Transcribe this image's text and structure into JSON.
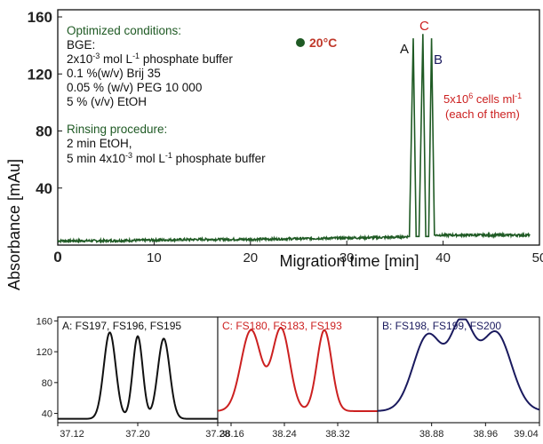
{
  "main_chart": {
    "type": "line",
    "xlabel": "Migration time  [min]",
    "ylabel": "Absorbance  [mAu]",
    "xlim": [
      0,
      50
    ],
    "ylim": [
      0,
      165
    ],
    "xticks": [
      "0",
      "10",
      "20",
      "30",
      "40",
      "50"
    ],
    "yticks": [
      "40",
      "80",
      "120",
      "160"
    ],
    "conditions": {
      "heading": "Optimized conditions:",
      "lines": [
        "BGE:",
        "2x10",
        "0.1 %(w/v) Brij 35",
        "0.05 % (w/v) PEG 10 000",
        "5 % (v/v) EtOH"
      ],
      "bge_line_mid": " mol L",
      "bge_line_end": " phosphate buffer",
      "exp1": "-3",
      "exp2": "-1"
    },
    "rinsing": {
      "heading": "Rinsing procedure:",
      "line1": "2 min EtOH,",
      "line2_a": "5 min 4x10",
      "line2_b": " mol L",
      "line2_c": " phosphate buffer",
      "exp1": "-3",
      "exp2": "-1"
    },
    "temperature": "20°C",
    "peak_labels": [
      "A",
      "C",
      "B"
    ],
    "cells_note_a": "5x10",
    "cells_note_exp": "6",
    "cells_note_b": " cells ml",
    "cells_note_exp2": "-1",
    "cells_note_2": "(each of them)"
  },
  "chart_data": [
    {
      "type": "line",
      "title": "",
      "xlabel": "Migration time [min]",
      "ylabel": "Absorbance [mAu]",
      "xlim": [
        0,
        50
      ],
      "ylim": [
        0,
        165
      ],
      "series": [
        {
          "x": [
            0,
            5,
            10,
            15,
            20,
            25,
            30,
            35,
            36.5,
            36.9,
            37.2,
            37.5,
            37.9,
            38.2,
            38.5,
            38.8,
            39.1,
            40,
            45,
            49
          ],
          "y": [
            3,
            3,
            3.5,
            4,
            4,
            4.5,
            5,
            5.5,
            6,
            145,
            6,
            6,
            148,
            6,
            6,
            145,
            7,
            7,
            7,
            7
          ]
        }
      ],
      "color": "#1f5a24"
    },
    {
      "type": "line",
      "title": "A: FS197, FS196, FS195",
      "xlim": [
        37.12,
        37.28
      ],
      "ylim": [
        28,
        165
      ],
      "xticks": [
        "37.12",
        "37.20",
        "37.28"
      ],
      "yticks": [
        "40",
        "80",
        "120",
        "160"
      ],
      "color": "#111111",
      "peaks": [
        {
          "x": 37.172,
          "height": 145,
          "width": 0.006
        },
        {
          "x": 37.2,
          "height": 140,
          "width": 0.005
        },
        {
          "x": 37.226,
          "height": 137,
          "width": 0.006
        }
      ],
      "baseline": 33
    },
    {
      "type": "line",
      "title": "C: FS180, FS183, FS193",
      "xlim": [
        38.14,
        38.38
      ],
      "xticks": [
        "38.16",
        "38.24",
        "38.32"
      ],
      "color": "#cc2020",
      "peaks": [
        {
          "x": 38.19,
          "height": 148,
          "width": 0.015
        },
        {
          "x": 38.235,
          "height": 150,
          "width": 0.013
        },
        {
          "x": 38.3,
          "height": 148,
          "width": 0.011
        }
      ],
      "baseline": 43
    },
    {
      "type": "line",
      "title": "B: FS198, FS199, FS200",
      "xlim": [
        38.8,
        39.04
      ],
      "xticks": [
        "38.88",
        "38.96",
        "39.04"
      ],
      "color": "#1a1a5e",
      "peaks": [
        {
          "x": 38.875,
          "height": 142,
          "width": 0.022
        },
        {
          "x": 38.925,
          "height": 148,
          "width": 0.017
        },
        {
          "x": 38.975,
          "height": 145,
          "width": 0.023
        }
      ],
      "baseline": 43
    }
  ]
}
